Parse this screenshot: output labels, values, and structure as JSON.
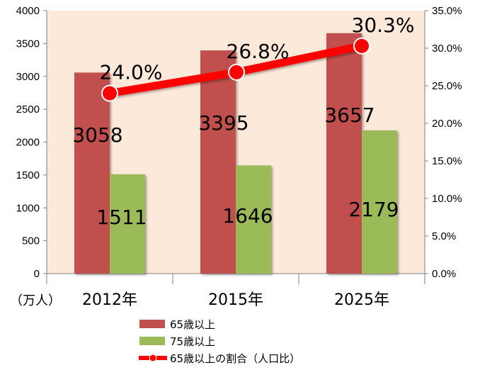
{
  "chart_data": {
    "type": "bar",
    "categories": [
      "2012年",
      "2015年",
      "2025年"
    ],
    "series": [
      {
        "name": "65歳以上",
        "kind": "bar",
        "axis": "left",
        "color": "#c0504d",
        "values": [
          3058,
          3395,
          3657
        ],
        "labels": [
          "3058",
          "3395",
          "3657"
        ]
      },
      {
        "name": "75歳以上",
        "kind": "bar",
        "axis": "left",
        "color": "#9bbb59",
        "values": [
          1511,
          1646,
          2179
        ],
        "labels": [
          "1511",
          "1646",
          "2179"
        ]
      },
      {
        "name": "65歳以上の割合（人口比）",
        "kind": "line",
        "axis": "right",
        "color": "#ff0000",
        "values": [
          24.0,
          26.8,
          30.3
        ],
        "labels": [
          "24.0%",
          "26.8%",
          "30.3%"
        ]
      }
    ],
    "y_left": {
      "min": 0,
      "max": 4000,
      "step": 500,
      "ticks": [
        "0",
        "500",
        "1000",
        "1500",
        "2000",
        "2500",
        "3000",
        "3500",
        "4000"
      ],
      "unit_label": "（万人）"
    },
    "y_right": {
      "min": 0,
      "max": 35,
      "step": 5,
      "ticks": [
        "0.0%",
        "5.0%",
        "10.0%",
        "15.0%",
        "20.0%",
        "25.0%",
        "30.0%",
        "35.0%"
      ]
    },
    "plot_background": "#fde9d9",
    "grid": false,
    "legend_position": "bottom"
  }
}
